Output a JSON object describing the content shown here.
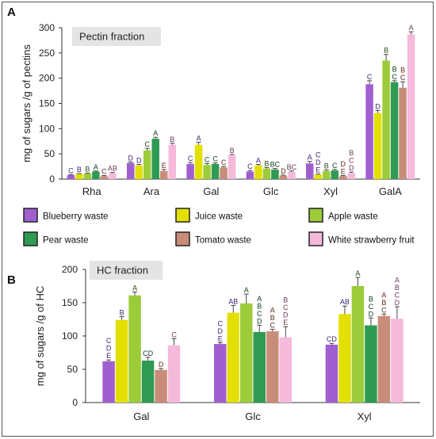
{
  "colors": {
    "series": [
      "#a05fd0",
      "#e3e000",
      "#9ccc3a",
      "#2f9a52",
      "#c98c78",
      "#f5b9da"
    ],
    "strokes": [
      "#3e1f70",
      "#3e1f70",
      "#24480f",
      "#0c3a1c",
      "#5c2a1c",
      "#6b3a5a"
    ],
    "tagBox": "#e4e4e4"
  },
  "chart_data": [
    {
      "type": "bar",
      "panel_label": "A",
      "tag": "Pectin fraction",
      "ylabel": "mg of sugars /g of pectins",
      "ylim": [
        0,
        300
      ],
      "yticks": [
        0,
        50,
        100,
        150,
        200,
        250,
        300
      ],
      "categories": [
        "Rha",
        "Ara",
        "Gal",
        "Glc",
        "Xyl",
        "GalA"
      ],
      "series": [
        {
          "name": "Blueberry waste",
          "values": [
            8,
            32,
            30,
            15,
            31,
            188
          ],
          "errors": [
            1,
            2,
            3,
            2,
            4,
            7
          ],
          "letters": [
            "C",
            "D",
            "C",
            "C",
            "A",
            "C"
          ]
        },
        {
          "name": "Juice waste",
          "values": [
            10,
            27,
            68,
            27,
            9,
            131
          ],
          "errors": [
            1,
            2,
            5,
            2,
            1,
            5
          ],
          "letters": [
            "B",
            "D",
            "A",
            "A",
            "C\nD\nE",
            "D"
          ]
        },
        {
          "name": "Apple waste",
          "values": [
            11,
            57,
            28,
            21,
            16,
            235
          ],
          "errors": [
            1,
            4,
            3,
            2,
            2,
            12
          ],
          "letters": [
            "B",
            "C",
            "C",
            "B",
            "B",
            "B"
          ]
        },
        {
          "name": "Pear waste",
          "values": [
            15,
            80,
            30,
            19,
            17,
            192
          ],
          "errors": [
            1,
            3,
            2,
            2,
            2,
            3
          ],
          "letters": [
            "A",
            "A",
            "C",
            "BC",
            "C",
            "B\nC"
          ]
        },
        {
          "name": "Tomato waste",
          "values": [
            6,
            16,
            23,
            7,
            6,
            181
          ],
          "errors": [
            1,
            3,
            2,
            1,
            1,
            12
          ],
          "letters": [
            "C",
            "E",
            "C",
            "D",
            "D\nE",
            "B\nC"
          ]
        },
        {
          "name": "White strawberry fruit",
          "values": [
            12,
            68,
            47,
            14,
            12,
            287
          ],
          "errors": [
            1,
            3,
            2,
            2,
            2,
            5
          ],
          "letters": [
            "AB",
            "B",
            "B",
            "BC",
            "B\nC\nD",
            "A"
          ]
        }
      ]
    },
    {
      "type": "bar",
      "panel_label": "B",
      "tag": "HC fraction",
      "ylabel": "mg of sugars /g of HC",
      "ylim": [
        0,
        200
      ],
      "yticks": [
        0,
        50,
        100,
        150,
        200
      ],
      "categories": [
        "Gal",
        "Glc",
        "Xyl"
      ],
      "series": [
        {
          "name": "Blueberry waste",
          "values": [
            62,
            88,
            87
          ],
          "errors": [
            2,
            2,
            2
          ],
          "letters": [
            "C\nD\nE",
            "C\nD\nE",
            "CD"
          ]
        },
        {
          "name": "Juice waste",
          "values": [
            124,
            135,
            133
          ],
          "errors": [
            5,
            11,
            12
          ],
          "letters": [
            "B",
            "AB",
            "AB"
          ]
        },
        {
          "name": "Apple waste",
          "values": [
            161,
            149,
            175
          ],
          "errors": [
            5,
            14,
            13
          ],
          "letters": [
            "A",
            "A",
            "A"
          ]
        },
        {
          "name": "Pear waste",
          "values": [
            63,
            106,
            116
          ],
          "errors": [
            5,
            10,
            11
          ],
          "letters": [
            "CD",
            "A\nB\nC\nD",
            "B\nC\nD"
          ]
        },
        {
          "name": "Tomato waste",
          "values": [
            49,
            107,
            130
          ],
          "errors": [
            2,
            3,
            3
          ],
          "letters": [
            "D",
            "A\nB\nC",
            "A\nB\nC"
          ]
        },
        {
          "name": "White strawberry fruit",
          "values": [
            86,
            98,
            126
          ],
          "errors": [
            10,
            16,
            18
          ],
          "letters": [
            "C",
            "B\nC\nD\nE",
            "A\nB\nC\nD"
          ]
        }
      ]
    }
  ],
  "legend": {
    "items": [
      "Blueberry waste",
      "Juice waste",
      "Apple waste",
      "Pear waste",
      "Tomato waste",
      "White strawberry fruit"
    ]
  }
}
